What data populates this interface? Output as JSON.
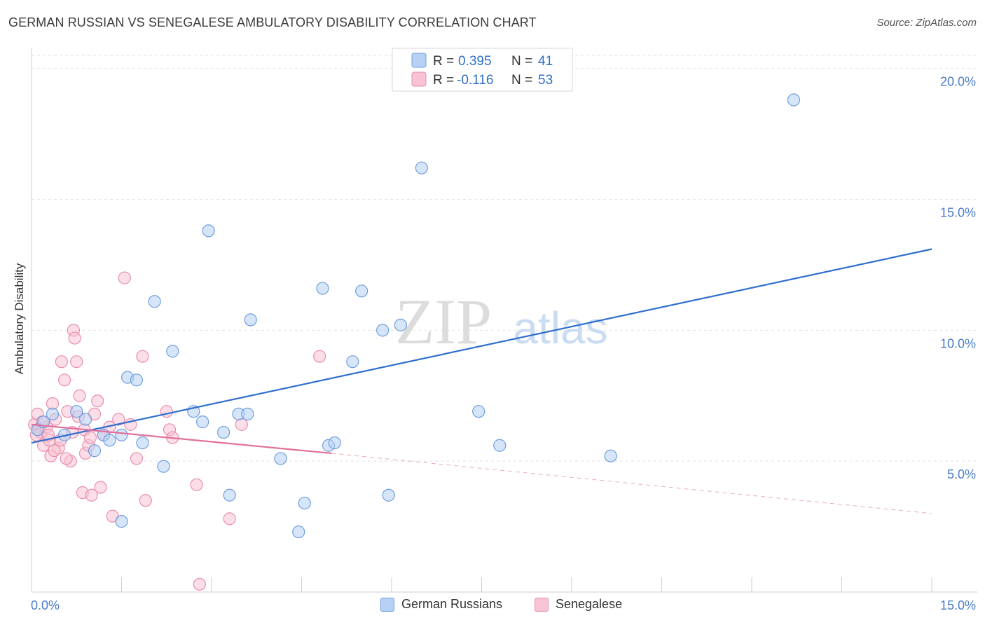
{
  "title": "GERMAN RUSSIAN VS SENEGALESE AMBULATORY DISABILITY CORRELATION CHART",
  "source": "Source: ZipAtlas.com",
  "watermark": {
    "zip": "ZIP",
    "atlas": "atlas"
  },
  "colors": {
    "blue_fill": "#b7d0f3",
    "blue_stroke": "#6f9fe0",
    "blue_line": "#2f6fcc",
    "pink_fill": "#f8c3d3",
    "pink_stroke": "#e98fac",
    "pink_line": "#e0709a",
    "grid": "#e2e2e2",
    "axis_text": "#4a7cc9"
  },
  "legend": {
    "r_label": "R =",
    "n_label": "N =",
    "rows": [
      {
        "series": "German Russians",
        "r": "0.395",
        "n": "41"
      },
      {
        "series": "Senegalese",
        "r": "-0.116",
        "n": "53"
      }
    ]
  },
  "chart_data": {
    "type": "scatter",
    "title": "GERMAN RUSSIAN VS SENEGALESE AMBULATORY DISABILITY CORRELATION CHART",
    "xlabel": "",
    "ylabel": "Ambulatory Disability",
    "xlim": [
      0,
      15
    ],
    "ylim": [
      0,
      20.5
    ],
    "x_tick_labels": [
      "0.0%",
      "15.0%"
    ],
    "y_ticks": [
      5,
      10,
      15,
      20
    ],
    "y_tick_labels": [
      "5.0%",
      "10.0%",
      "15.0%",
      "20.0%"
    ],
    "grid": true,
    "legend_position": "top-center",
    "series": [
      {
        "name": "German Russians",
        "points": [
          [
            0.1,
            6.2
          ],
          [
            0.2,
            6.5
          ],
          [
            0.35,
            6.8
          ],
          [
            0.55,
            6.0
          ],
          [
            0.75,
            6.9
          ],
          [
            0.9,
            6.6
          ],
          [
            1.05,
            5.4
          ],
          [
            1.2,
            6.0
          ],
          [
            1.3,
            5.8
          ],
          [
            1.5,
            2.7
          ],
          [
            1.6,
            8.2
          ],
          [
            1.75,
            8.1
          ],
          [
            1.85,
            5.7
          ],
          [
            2.05,
            11.1
          ],
          [
            2.2,
            4.8
          ],
          [
            2.35,
            9.2
          ],
          [
            2.7,
            6.9
          ],
          [
            2.85,
            6.5
          ],
          [
            2.95,
            13.8
          ],
          [
            3.2,
            6.1
          ],
          [
            3.3,
            3.7
          ],
          [
            3.45,
            6.8
          ],
          [
            3.6,
            6.8
          ],
          [
            3.65,
            10.4
          ],
          [
            4.15,
            5.1
          ],
          [
            4.45,
            2.3
          ],
          [
            4.55,
            3.4
          ],
          [
            4.85,
            11.6
          ],
          [
            4.95,
            5.6
          ],
          [
            5.05,
            5.7
          ],
          [
            5.35,
            8.8
          ],
          [
            5.5,
            11.5
          ],
          [
            5.85,
            10.0
          ],
          [
            5.95,
            3.7
          ],
          [
            6.15,
            10.2
          ],
          [
            6.5,
            16.2
          ],
          [
            7.45,
            6.9
          ],
          [
            7.8,
            5.6
          ],
          [
            9.65,
            5.2
          ],
          [
            12.7,
            18.8
          ],
          [
            1.5,
            6.0
          ]
        ],
        "trend": {
          "x": [
            0,
            15
          ],
          "y": [
            5.7,
            13.1
          ],
          "style": "solid"
        }
      },
      {
        "name": "Senegalese",
        "points": [
          [
            0.05,
            6.4
          ],
          [
            0.1,
            6.8
          ],
          [
            0.12,
            6.2
          ],
          [
            0.15,
            6.1
          ],
          [
            0.2,
            5.6
          ],
          [
            0.25,
            6.3
          ],
          [
            0.3,
            5.8
          ],
          [
            0.32,
            5.2
          ],
          [
            0.35,
            7.2
          ],
          [
            0.4,
            6.6
          ],
          [
            0.45,
            5.5
          ],
          [
            0.5,
            8.8
          ],
          [
            0.55,
            8.1
          ],
          [
            0.6,
            6.9
          ],
          [
            0.65,
            5.0
          ],
          [
            0.7,
            10.0
          ],
          [
            0.72,
            9.7
          ],
          [
            0.75,
            8.8
          ],
          [
            0.8,
            7.5
          ],
          [
            0.85,
            3.8
          ],
          [
            0.9,
            5.3
          ],
          [
            0.95,
            5.6
          ],
          [
            1.0,
            3.7
          ],
          [
            1.05,
            6.8
          ],
          [
            1.1,
            7.3
          ],
          [
            1.15,
            4.0
          ],
          [
            1.2,
            6.0
          ],
          [
            1.3,
            6.3
          ],
          [
            1.35,
            2.9
          ],
          [
            1.45,
            6.6
          ],
          [
            1.55,
            12.0
          ],
          [
            1.65,
            6.4
          ],
          [
            1.75,
            5.1
          ],
          [
            1.85,
            9.0
          ],
          [
            1.9,
            3.5
          ],
          [
            2.25,
            6.9
          ],
          [
            2.3,
            6.2
          ],
          [
            2.35,
            5.9
          ],
          [
            2.75,
            4.1
          ],
          [
            2.8,
            0.3
          ],
          [
            3.3,
            2.8
          ],
          [
            3.5,
            6.4
          ],
          [
            4.8,
            9.0
          ],
          [
            0.08,
            6.0
          ],
          [
            0.18,
            6.5
          ],
          [
            0.28,
            6.0
          ],
          [
            0.38,
            5.4
          ],
          [
            0.48,
            5.8
          ],
          [
            0.58,
            5.1
          ],
          [
            0.68,
            6.1
          ],
          [
            0.78,
            6.7
          ],
          [
            0.88,
            6.2
          ],
          [
            0.98,
            5.9
          ]
        ],
        "trend": {
          "x": [
            0,
            5
          ],
          "y": [
            6.4,
            5.3
          ],
          "style": "solid",
          "dashed_extension": {
            "x": [
              5,
              15
            ],
            "y": [
              5.3,
              3.0
            ]
          }
        }
      }
    ]
  }
}
